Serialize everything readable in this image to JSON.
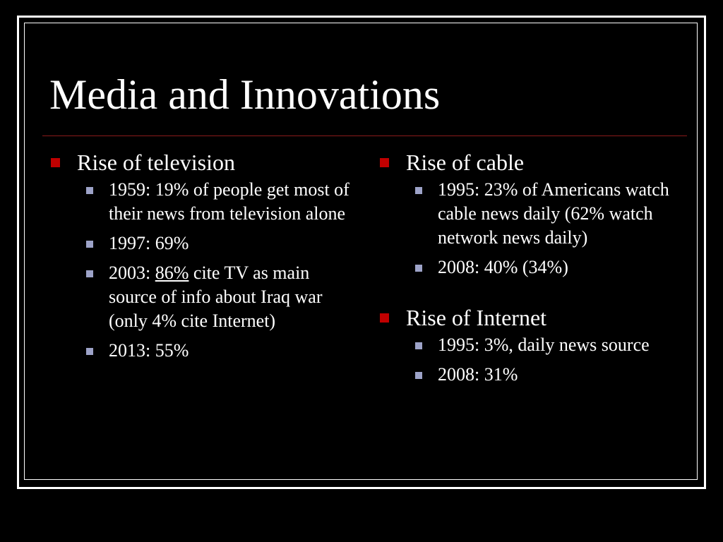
{
  "slide": {
    "title": "Media and Innovations",
    "left_column": {
      "heading": "Rise of television",
      "items": [
        {
          "text": "1959: 19% of people get most of their news from television alone"
        },
        {
          "text": "1997: 69%"
        },
        {
          "pre": "2003: ",
          "emphasis": "86%",
          "post": " cite TV as main source of info about Iraq war (only 4% cite Internet)"
        },
        {
          "text": "2013: 55%"
        }
      ]
    },
    "right_column": {
      "groups": [
        {
          "heading": "Rise of cable",
          "items": [
            {
              "text": "1995: 23% of Americans watch cable news daily (62% watch network news daily)"
            },
            {
              "text": "2008: 40% (34%)"
            }
          ]
        },
        {
          "heading": "Rise of Internet",
          "items": [
            {
              "text": "1995: 3%, daily news source"
            },
            {
              "text": "2008: 31%"
            }
          ]
        }
      ]
    }
  },
  "colors": {
    "background": "#000000",
    "text": "#ffffff",
    "primary_bullet": "#c00000",
    "secondary_bullet": "#9da3c8",
    "title_rule": "#8b1a1a"
  }
}
